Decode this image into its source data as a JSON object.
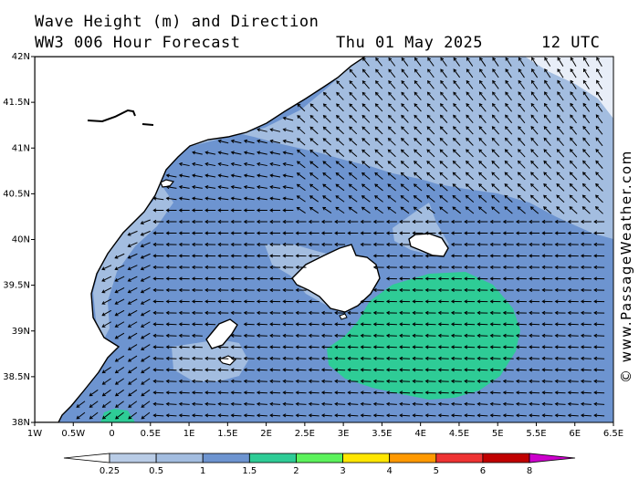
{
  "header": {
    "title": "Wave Height (m) and Direction",
    "model": "WW3 006 Hour Forecast",
    "date": "Thu 01 May 2025",
    "time": "12 UTC"
  },
  "watermark": "© www.PassageWeather.com",
  "axes": {
    "lat_labels": [
      "42N",
      "41.5N",
      "41N",
      "40.5N",
      "40N",
      "39.5N",
      "39N",
      "38.5N",
      "38N"
    ],
    "lat_values": [
      42,
      41.5,
      41,
      40.5,
      40,
      39.5,
      39,
      38.5,
      38
    ],
    "lon_labels": [
      "1W",
      "0.5W",
      "0",
      "0.5E",
      "1E",
      "1.5E",
      "2E",
      "2.5E",
      "3E",
      "3.5E",
      "4E",
      "4.5E",
      "5E",
      "5.5E",
      "6E",
      "6.5E"
    ],
    "lon_values": [
      -1,
      -0.5,
      0,
      0.5,
      1,
      1.5,
      2,
      2.5,
      3,
      3.5,
      4,
      4.5,
      5,
      5.5,
      6,
      6.5
    ]
  },
  "legend": {
    "tick_labels": [
      "0.25",
      "0.5",
      "1",
      "1.5",
      "2",
      "3",
      "4",
      "5",
      "6",
      "8"
    ],
    "colors": [
      "#e8eef8",
      "#b9cce6",
      "#a3bde0",
      "#6d94d0",
      "#2ecc96",
      "#5cf25c",
      "#ffe600",
      "#ff9900",
      "#ee3333",
      "#c00000",
      "#cc00cc"
    ]
  },
  "colors": {
    "land": "#ffffff",
    "coast": "#000000",
    "arrow": "#000000"
  }
}
